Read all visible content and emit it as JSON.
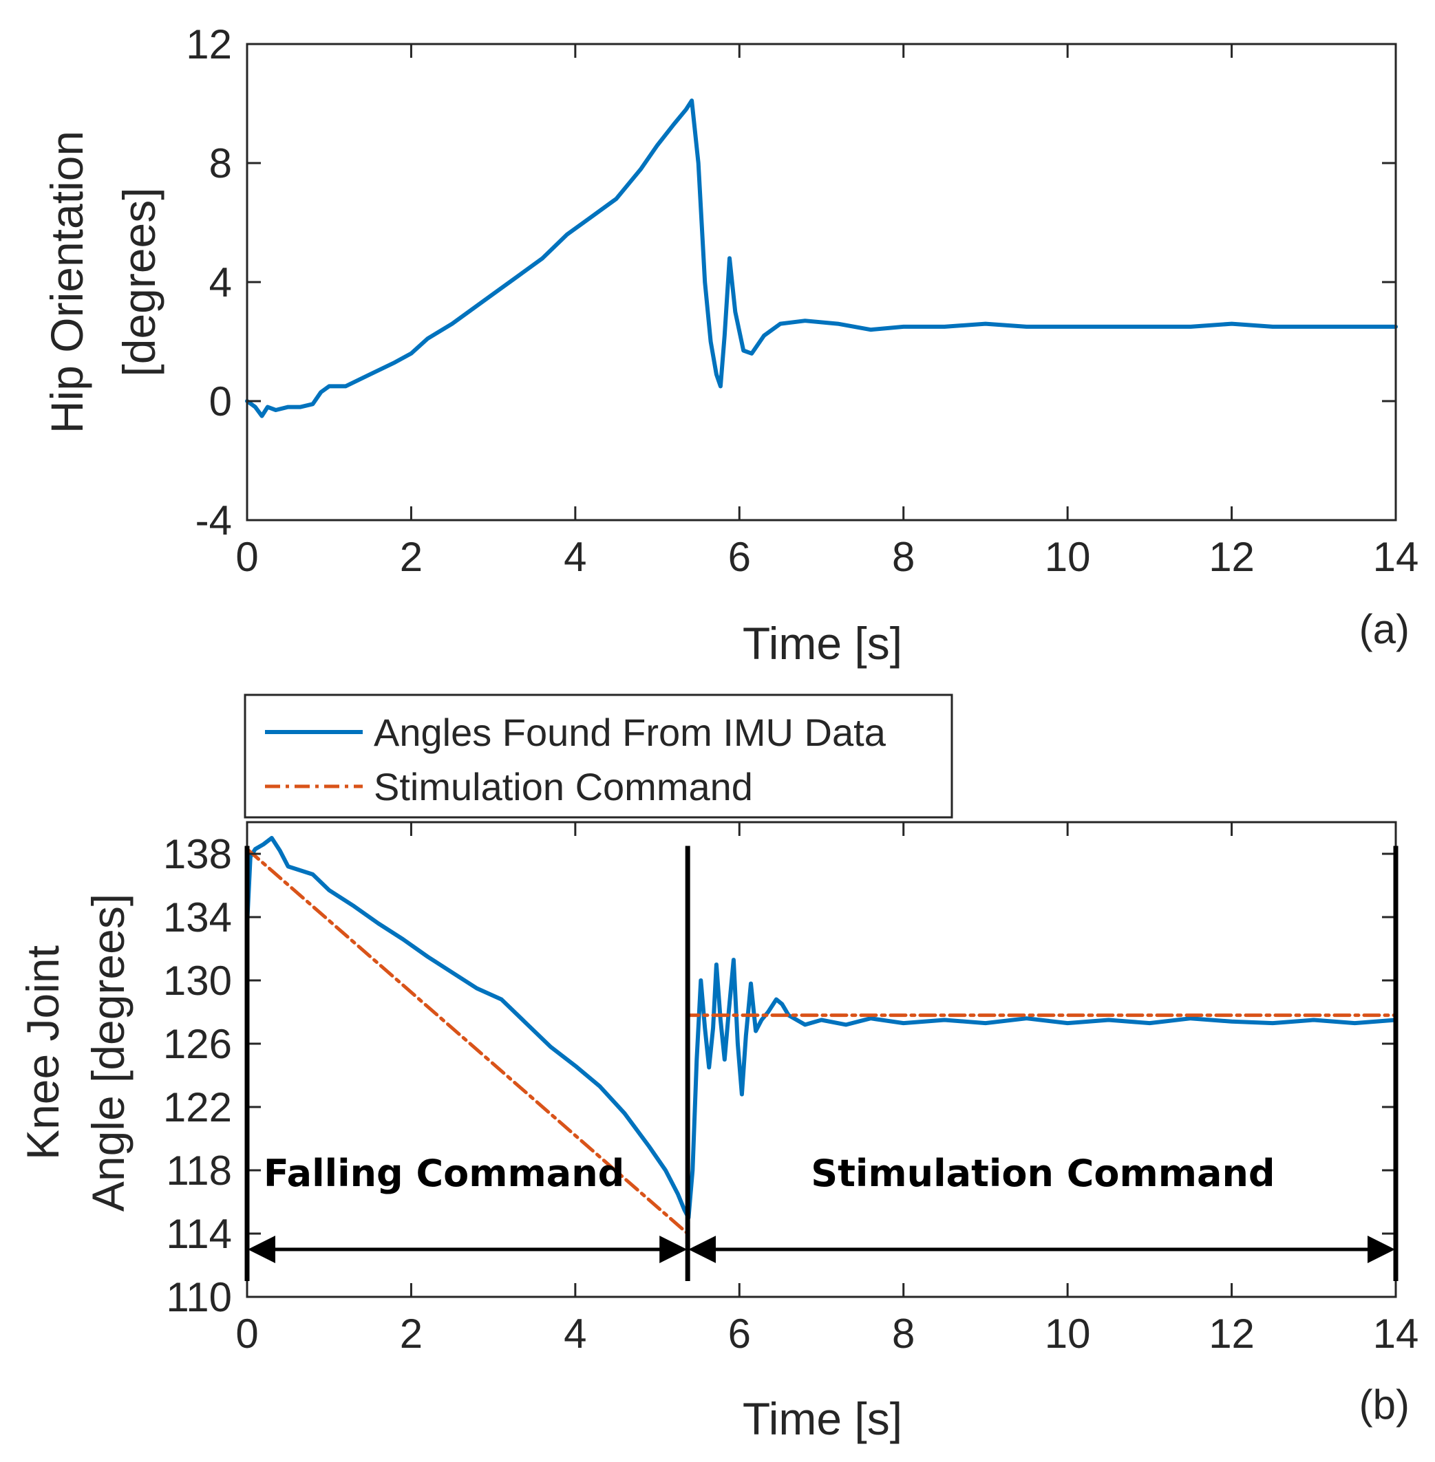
{
  "colors": {
    "imu": "#0072BD",
    "command": "#D95319",
    "axes": "#262626",
    "arrow": "#000000"
  },
  "chart_data": [
    {
      "type": "line",
      "panel": "(a)",
      "title": "",
      "xlabel": "Time [s]",
      "ylabel_lines": [
        "Hip Orientation",
        "[degrees]"
      ],
      "xlim": [
        0,
        14
      ],
      "ylim": [
        -4,
        12
      ],
      "xticks": [
        0,
        2,
        4,
        6,
        8,
        10,
        12,
        14
      ],
      "yticks": [
        -4,
        0,
        4,
        8,
        12
      ],
      "grid": false,
      "series": [
        {
          "name": "Hip orientation",
          "color": "#0072BD",
          "points": [
            [
              0,
              0.0
            ],
            [
              0.1,
              -0.2
            ],
            [
              0.18,
              -0.5
            ],
            [
              0.25,
              -0.2
            ],
            [
              0.35,
              -0.3
            ],
            [
              0.5,
              -0.2
            ],
            [
              0.65,
              -0.2
            ],
            [
              0.8,
              -0.1
            ],
            [
              0.9,
              0.3
            ],
            [
              1.0,
              0.5
            ],
            [
              1.2,
              0.5
            ],
            [
              1.5,
              0.9
            ],
            [
              1.8,
              1.3
            ],
            [
              2.0,
              1.6
            ],
            [
              2.2,
              2.1
            ],
            [
              2.5,
              2.6
            ],
            [
              2.8,
              3.2
            ],
            [
              3.0,
              3.6
            ],
            [
              3.3,
              4.2
            ],
            [
              3.6,
              4.8
            ],
            [
              3.9,
              5.6
            ],
            [
              4.2,
              6.2
            ],
            [
              4.5,
              6.8
            ],
            [
              4.8,
              7.8
            ],
            [
              5.0,
              8.6
            ],
            [
              5.2,
              9.3
            ],
            [
              5.35,
              9.8
            ],
            [
              5.42,
              10.1
            ],
            [
              5.5,
              8.0
            ],
            [
              5.58,
              4.0
            ],
            [
              5.65,
              2.0
            ],
            [
              5.72,
              0.9
            ],
            [
              5.77,
              0.5
            ],
            [
              5.82,
              2.2
            ],
            [
              5.88,
              4.8
            ],
            [
              5.95,
              3.0
            ],
            [
              6.05,
              1.7
            ],
            [
              6.15,
              1.6
            ],
            [
              6.3,
              2.2
            ],
            [
              6.5,
              2.6
            ],
            [
              6.8,
              2.7
            ],
            [
              7.2,
              2.6
            ],
            [
              7.6,
              2.4
            ],
            [
              8.0,
              2.5
            ],
            [
              8.5,
              2.5
            ],
            [
              9.0,
              2.6
            ],
            [
              9.5,
              2.5
            ],
            [
              10.0,
              2.5
            ],
            [
              10.5,
              2.5
            ],
            [
              11.0,
              2.5
            ],
            [
              11.5,
              2.5
            ],
            [
              12.0,
              2.6
            ],
            [
              12.5,
              2.5
            ],
            [
              13.0,
              2.5
            ],
            [
              13.5,
              2.5
            ],
            [
              14.0,
              2.5
            ]
          ]
        }
      ]
    },
    {
      "type": "line",
      "panel": "(b)",
      "title": "",
      "xlabel": "Time [s]",
      "ylabel_lines": [
        "Knee Joint",
        "Angle [degrees]"
      ],
      "xlim": [
        0,
        14
      ],
      "ylim": [
        110,
        140
      ],
      "xticks": [
        0,
        2,
        4,
        6,
        8,
        10,
        12,
        14
      ],
      "yticks": [
        110,
        114,
        118,
        122,
        126,
        130,
        134,
        138
      ],
      "grid": false,
      "legend": {
        "placement": "above-top-left",
        "entries": [
          "Angles Found From IMU Data",
          "Stimulation Command"
        ]
      },
      "series": [
        {
          "name": "Angles Found From IMU Data",
          "color": "#0072BD",
          "style": "solid",
          "points": [
            [
              0,
              133.5
            ],
            [
              0.04,
              137.8
            ],
            [
              0.1,
              138.3
            ],
            [
              0.2,
              138.6
            ],
            [
              0.3,
              139.0
            ],
            [
              0.4,
              138.2
            ],
            [
              0.5,
              137.2
            ],
            [
              0.8,
              136.7
            ],
            [
              1.0,
              135.7
            ],
            [
              1.3,
              134.7
            ],
            [
              1.6,
              133.6
            ],
            [
              1.9,
              132.6
            ],
            [
              2.2,
              131.5
            ],
            [
              2.5,
              130.5
            ],
            [
              2.8,
              129.5
            ],
            [
              3.1,
              128.8
            ],
            [
              3.4,
              127.3
            ],
            [
              3.7,
              125.8
            ],
            [
              4.0,
              124.6
            ],
            [
              4.3,
              123.3
            ],
            [
              4.6,
              121.6
            ],
            [
              4.9,
              119.5
            ],
            [
              5.1,
              118.0
            ],
            [
              5.25,
              116.5
            ],
            [
              5.33,
              115.5
            ],
            [
              5.38,
              115.0
            ],
            [
              5.43,
              118.0
            ],
            [
              5.48,
              125.0
            ],
            [
              5.53,
              130.0
            ],
            [
              5.58,
              127.0
            ],
            [
              5.63,
              124.5
            ],
            [
              5.68,
              127.0
            ],
            [
              5.72,
              131.0
            ],
            [
              5.77,
              127.5
            ],
            [
              5.82,
              125.0
            ],
            [
              5.87,
              128.0
            ],
            [
              5.93,
              131.3
            ],
            [
              5.98,
              126.0
            ],
            [
              6.03,
              122.8
            ],
            [
              6.08,
              126.5
            ],
            [
              6.14,
              129.8
            ],
            [
              6.2,
              126.8
            ],
            [
              6.27,
              127.5
            ],
            [
              6.35,
              128.0
            ],
            [
              6.45,
              128.8
            ],
            [
              6.52,
              128.5
            ],
            [
              6.6,
              127.8
            ],
            [
              6.8,
              127.2
            ],
            [
              7.0,
              127.5
            ],
            [
              7.3,
              127.2
            ],
            [
              7.6,
              127.6
            ],
            [
              8.0,
              127.3
            ],
            [
              8.5,
              127.5
            ],
            [
              9.0,
              127.3
            ],
            [
              9.5,
              127.6
            ],
            [
              10.0,
              127.3
            ],
            [
              10.5,
              127.5
            ],
            [
              11.0,
              127.3
            ],
            [
              11.5,
              127.6
            ],
            [
              12.0,
              127.4
            ],
            [
              12.5,
              127.3
            ],
            [
              13.0,
              127.5
            ],
            [
              13.5,
              127.3
            ],
            [
              14.0,
              127.5
            ]
          ]
        },
        {
          "name": "Stimulation Command",
          "color": "#D95319",
          "style": "dash-dot",
          "points": [
            [
              0,
              138.3
            ],
            [
              5.37,
              114.0
            ],
            [
              5.37,
              127.8
            ],
            [
              14.0,
              127.8
            ]
          ]
        }
      ],
      "annotations": [
        {
          "text": "Falling Command",
          "x": 2.4,
          "y": 117.0
        },
        {
          "text": "Stimulation Command",
          "x": 9.7,
          "y": 117.0
        }
      ],
      "arrows": [
        {
          "from": 0.0,
          "to": 5.37,
          "y": 113.0
        },
        {
          "from": 5.37,
          "to": 14.0,
          "y": 113.0
        }
      ],
      "markers_x": [
        0.0,
        5.37,
        14.0
      ]
    }
  ]
}
